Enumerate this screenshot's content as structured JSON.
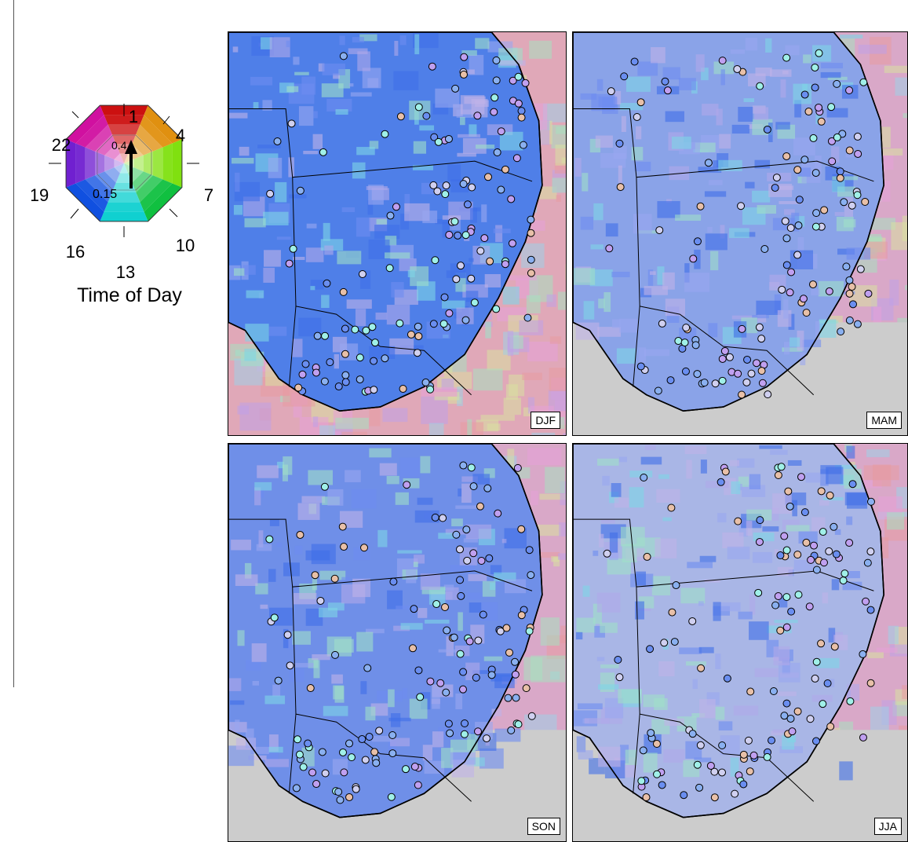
{
  "legend": {
    "title": "Time of Day",
    "hours": [
      "1",
      "4",
      "7",
      "10",
      "13",
      "16",
      "19",
      "22"
    ],
    "amplitude_labels": [
      "0.4",
      "0.15"
    ],
    "colors": [
      "#cc1010",
      "#e09010",
      "#80e010",
      "#10c040",
      "#10d0d0",
      "#1050e0",
      "#7020d0",
      "#d010a0"
    ]
  },
  "panels": [
    {
      "season": "DJF",
      "dominant_color": "#4f7fe8"
    },
    {
      "season": "MAM",
      "dominant_color": "#8aa3e8"
    },
    {
      "season": "SON",
      "dominant_color": "#6f8fe8"
    },
    {
      "season": "JJA",
      "dominant_color": "#a9b6e6"
    }
  ]
}
